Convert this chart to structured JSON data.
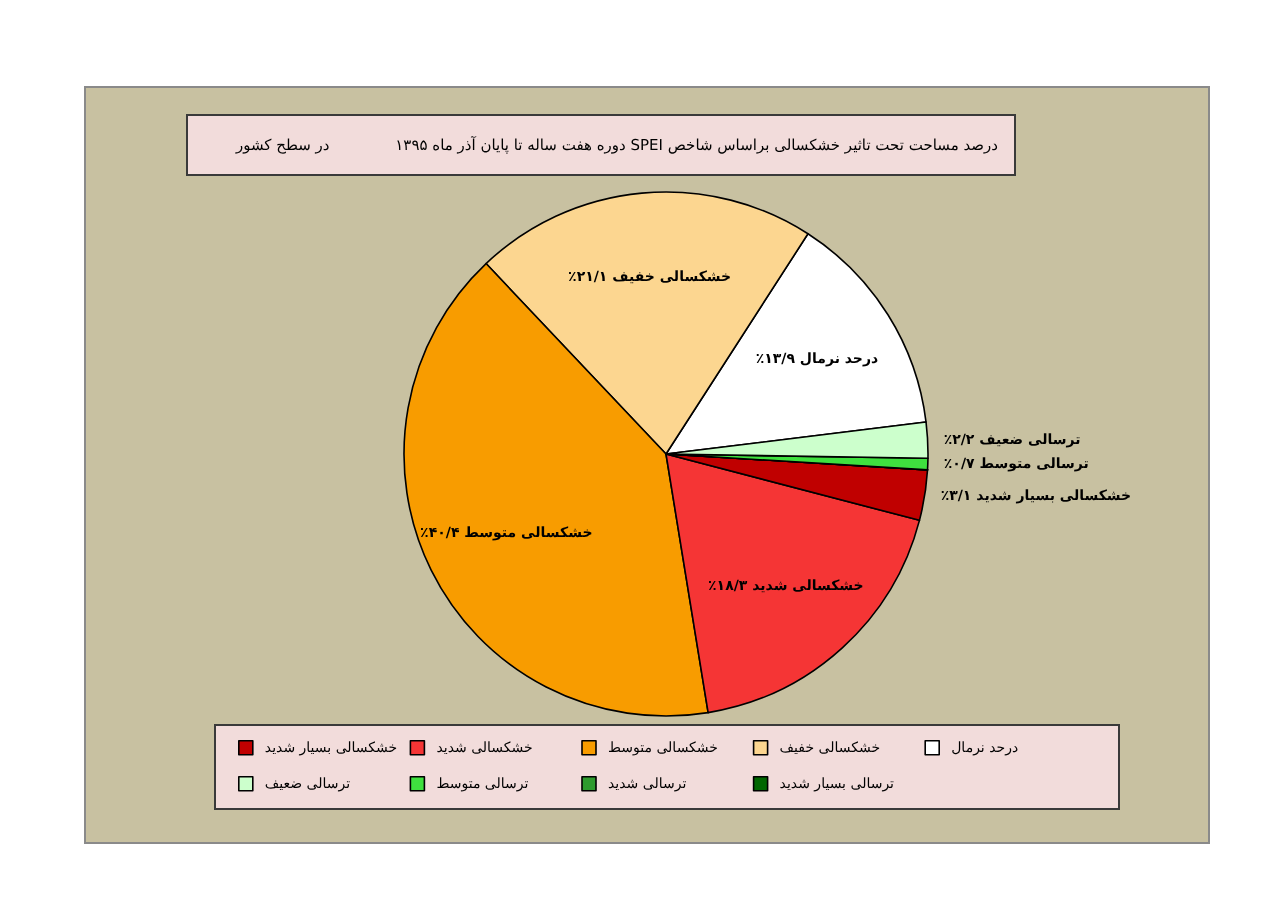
{
  "chart_data": {
    "type": "pie",
    "title": "درصد مساحت تحت تاثیر خشکسالی براساس شاخص SPEI دوره هفت ساله تا پایان آذر ماه ۱۳۹۵",
    "subtitle": "در سطح کشور",
    "categories": [
      "درحد نرمال",
      "خشکسالی خفیف",
      "خشکسالی متوسط",
      "خشکسالی شدید",
      "خشکسالی بسیار شدید",
      "ترسالی بسیار شدید",
      "ترسالی شدید",
      "ترسالی متوسط",
      "ترسالی ضعیف"
    ],
    "values": [
      13.9,
      21.1,
      40.4,
      18.3,
      3.1,
      0,
      0,
      0.7,
      2.2
    ],
    "value_labels": [
      "۱۳/۹٪",
      "۲۱/۱٪",
      "۴۰/۴٪",
      "۱۸/۳٪",
      "۳/۱٪",
      null,
      null,
      "۰/۷٪",
      "۲/۲٪"
    ],
    "colors": [
      "#ffffff",
      "#fcd690",
      "#f89c00",
      "#f53535",
      "#c00000",
      "#006600",
      "#2e9b2e",
      "#3fe03f",
      "#ccffcc"
    ],
    "legend": "bottom"
  }
}
